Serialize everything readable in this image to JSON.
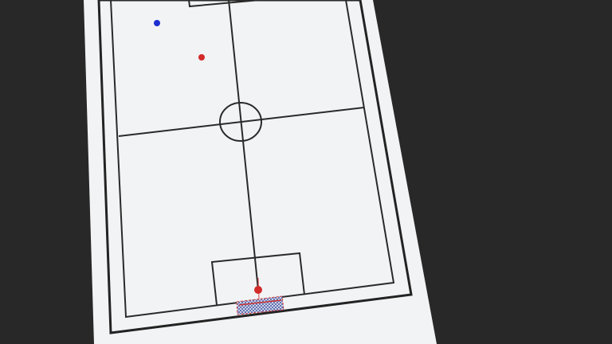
{
  "scene": {
    "background_color": "#282828",
    "field_color": "#f2f3f5",
    "line_color": "#2a2a2a"
  },
  "entities": {
    "team_blue": {
      "color": "#1c2fd0",
      "players": [
        {
          "name": "blue-player-1"
        }
      ]
    },
    "team_red": {
      "color": "#d32a2a",
      "players": [
        {
          "name": "red-player-1"
        },
        {
          "name": "red-player-2"
        }
      ]
    },
    "goal": {
      "frame_color": "#d23a3a",
      "net_icon": "goal-net-icon"
    }
  }
}
